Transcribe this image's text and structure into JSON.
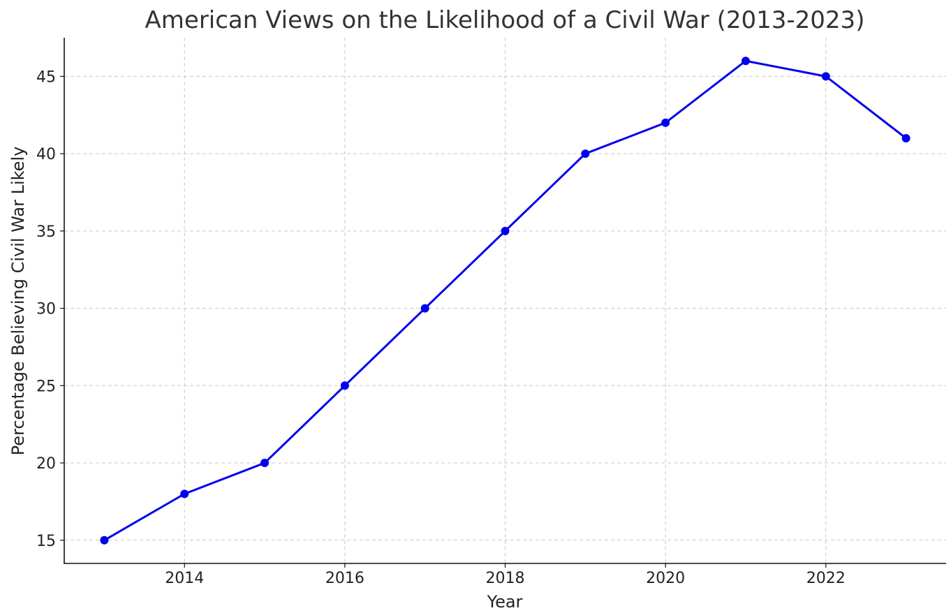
{
  "chart_data": {
    "type": "line",
    "title": "American Views on the Likelihood of a Civil War (2013-2023)",
    "xlabel": "Year",
    "ylabel": "Percentage Believing Civil War Likely",
    "x": [
      2013,
      2014,
      2015,
      2016,
      2017,
      2018,
      2019,
      2020,
      2021,
      2022,
      2023
    ],
    "series": [
      {
        "values": [
          15,
          18,
          20,
          25,
          30,
          35,
          40,
          42,
          46,
          45,
          41
        ],
        "color": "#0000ee"
      }
    ],
    "xlim": [
      2012.5,
      2023.5
    ],
    "ylim": [
      13.5,
      47.5
    ],
    "xticks": [
      2014,
      2016,
      2018,
      2020,
      2022
    ],
    "xtick_labels": [
      "2014",
      "2016",
      "2018",
      "2020",
      "2022"
    ],
    "yticks": [
      15,
      20,
      25,
      30,
      35,
      40,
      45
    ],
    "ytick_labels": [
      "15",
      "20",
      "25",
      "30",
      "35",
      "40",
      "45"
    ],
    "grid": true,
    "marker": "circle"
  }
}
